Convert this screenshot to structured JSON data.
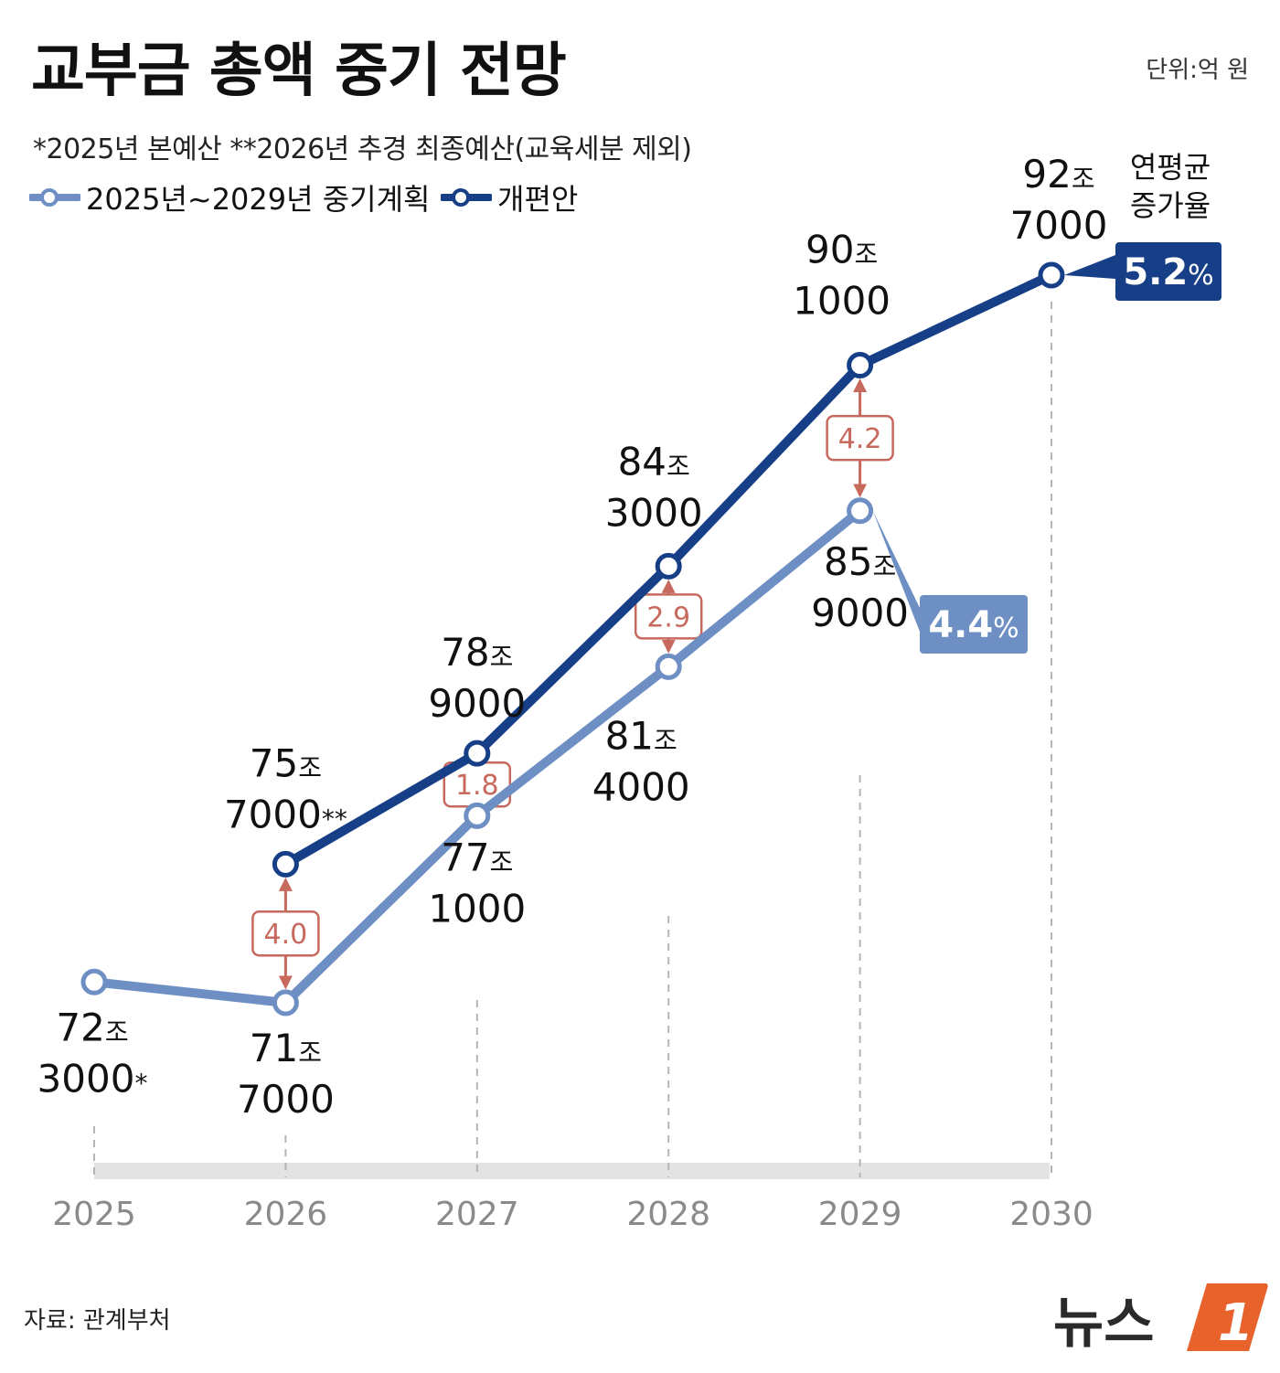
{
  "title": "교부금 총액 중기 전망",
  "unit": "단위:억 원",
  "note": "*2025년 본예산  **2026년 추경 최종예산(교육세분 제외)",
  "source": "자료: 관계부처",
  "brand": "뉴스1",
  "avg_growth_label_1": "연평균",
  "avg_growth_label_2": "증가율",
  "colors": {
    "revised": "#163f87",
    "plan": "#6e8fc4",
    "gap": "#c7695d",
    "axis": "#e3e3e3"
  },
  "chart_data": {
    "type": "line",
    "x": [
      2025,
      2026,
      2027,
      2028,
      2029,
      2030
    ],
    "xlabel": "",
    "ylabel": "",
    "series": [
      {
        "name": "2025년~2029년 중기계획",
        "x": [
          2025,
          2026,
          2027,
          2028,
          2029
        ],
        "values": [
          723000,
          717000,
          771000,
          814000,
          859000
        ],
        "labels": [
          [
            "72",
            "조",
            "3000",
            "*"
          ],
          [
            "71",
            "조",
            "7000",
            ""
          ],
          [
            "77",
            "조",
            "1000",
            ""
          ],
          [
            "81",
            "조",
            "4000",
            ""
          ],
          [
            "85",
            "조",
            "9000",
            ""
          ]
        ],
        "avg_growth": "4.4",
        "avg_growth_unit": "%"
      },
      {
        "name": "개편안",
        "x": [
          2026,
          2027,
          2028,
          2029,
          2030
        ],
        "values": [
          757000,
          789000,
          843000,
          901000,
          927000
        ],
        "labels": [
          [
            "75",
            "조",
            "7000",
            "**"
          ],
          [
            "78",
            "조",
            "9000",
            ""
          ],
          [
            "84",
            "조",
            "3000",
            ""
          ],
          [
            "90",
            "조",
            "1000",
            ""
          ],
          [
            "92",
            "조",
            "7000",
            ""
          ]
        ],
        "avg_growth": "5.2",
        "avg_growth_unit": "%"
      }
    ],
    "differences": [
      {
        "x": 2026,
        "value": "4.0"
      },
      {
        "x": 2027,
        "value": "1.8"
      },
      {
        "x": 2028,
        "value": "2.9"
      },
      {
        "x": 2029,
        "value": "4.2"
      }
    ]
  }
}
